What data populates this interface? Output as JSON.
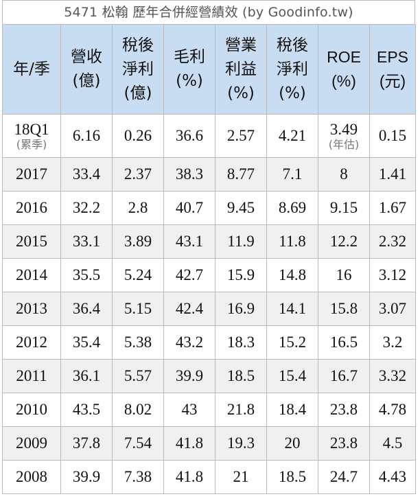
{
  "title": "5471 松翰 歷年合併經營績效 (by Goodinfo.tw)",
  "headers": [
    {
      "key": "period",
      "lines": [
        "年/季"
      ]
    },
    {
      "key": "revenue",
      "lines": [
        "營收",
        "(億)"
      ]
    },
    {
      "key": "net_income",
      "lines": [
        "稅後",
        "淨利",
        "(億)"
      ]
    },
    {
      "key": "gross_margin",
      "lines": [
        "毛利",
        "(%)"
      ]
    },
    {
      "key": "operating_margin",
      "lines": [
        "營業",
        "利益",
        "(%)"
      ]
    },
    {
      "key": "net_margin",
      "lines": [
        "稅後",
        "淨利",
        "(%)"
      ]
    },
    {
      "key": "roe",
      "lines": [
        "ROE",
        "(%)"
      ]
    },
    {
      "key": "eps",
      "lines": [
        "EPS",
        "(元)"
      ]
    }
  ],
  "first_row": {
    "period": "18Q1",
    "period_note": "(累季)",
    "revenue": "6.16",
    "net_income": "0.26",
    "gross_margin": "36.6",
    "operating_margin": "2.57",
    "net_margin": "4.21",
    "roe": "3.49",
    "roe_note": "(年估)",
    "eps": "0.15"
  },
  "rows": [
    [
      "2017",
      "33.4",
      "2.37",
      "38.3",
      "8.77",
      "7.1",
      "8",
      "1.41"
    ],
    [
      "2016",
      "32.2",
      "2.8",
      "40.7",
      "9.45",
      "8.69",
      "9.15",
      "1.67"
    ],
    [
      "2015",
      "33.1",
      "3.89",
      "43.1",
      "11.9",
      "11.8",
      "12.2",
      "2.32"
    ],
    [
      "2014",
      "35.5",
      "5.24",
      "42.7",
      "15.9",
      "14.8",
      "16",
      "3.12"
    ],
    [
      "2013",
      "36.4",
      "5.15",
      "42.4",
      "16.9",
      "14.1",
      "15.8",
      "3.07"
    ],
    [
      "2012",
      "35.4",
      "5.38",
      "43.2",
      "18.3",
      "15.2",
      "16.5",
      "3.2"
    ],
    [
      "2011",
      "36.1",
      "5.57",
      "39.9",
      "18.5",
      "15.4",
      "16.7",
      "3.32"
    ],
    [
      "2010",
      "43.5",
      "8.02",
      "43",
      "21.8",
      "18.4",
      "23.8",
      "4.78"
    ],
    [
      "2009",
      "37.8",
      "7.54",
      "41.8",
      "19.3",
      "20",
      "23.8",
      "4.5"
    ],
    [
      "2008",
      "39.9",
      "7.38",
      "41.8",
      "21",
      "18.5",
      "24.7",
      "4.43"
    ]
  ],
  "colors": {
    "header_bg": "#c8dcf2",
    "row_shade": "#f0f0f0",
    "border": "#bbbbbb",
    "note_text": "#777777"
  }
}
